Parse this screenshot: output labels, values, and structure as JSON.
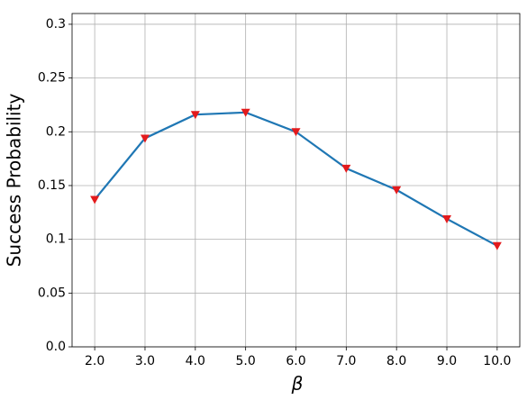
{
  "chart_data": {
    "type": "line",
    "x_label": "β",
    "y_label": "Success Probability",
    "x": [
      2,
      3,
      4,
      5,
      6,
      7,
      8,
      9,
      10
    ],
    "series": [
      {
        "color": "#1f77b4",
        "marker_color": "#e31a1c",
        "values": [
          0.137,
          0.194,
          0.216,
          0.218,
          0.2,
          0.166,
          0.146,
          0.119,
          0.094
        ]
      }
    ],
    "xlim": [
      1.55,
      10.45
    ],
    "xticks": [
      {
        "value": 2,
        "label": "2.0"
      },
      {
        "value": 3,
        "label": "3.0"
      },
      {
        "value": 4,
        "label": "4.0"
      },
      {
        "value": 5,
        "label": "5.0"
      },
      {
        "value": 6,
        "label": "6.0"
      },
      {
        "value": 7,
        "label": "7.0"
      },
      {
        "value": 8,
        "label": "8.0"
      },
      {
        "value": 9,
        "label": "9.0"
      },
      {
        "value": 10,
        "label": "10.0"
      }
    ],
    "ylim": [
      0,
      0.31
    ],
    "yticks": [
      {
        "value": 0,
        "label": "0.0"
      },
      0.05,
      0.1,
      0.15,
      0.2,
      0.25,
      0.3
    ],
    "grid": true
  }
}
